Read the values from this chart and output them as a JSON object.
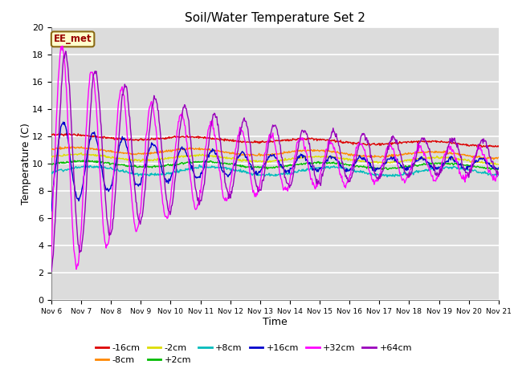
{
  "title": "Soil/Water Temperature Set 2",
  "xlabel": "Time",
  "ylabel": "Temperature (C)",
  "ylim": [
    0,
    20
  ],
  "xlim": [
    0,
    15
  ],
  "fig_bg": "#ffffff",
  "plot_bg": "#dcdcdc",
  "annotation_text": "EE_met",
  "annotation_bg": "#ffffcc",
  "annotation_border": "#8b6914",
  "xtick_labels": [
    "Nov 6",
    "Nov 7",
    "Nov 8",
    "Nov 9",
    "Nov 10",
    "Nov 11",
    "Nov 12",
    "Nov 13",
    "Nov 14",
    "Nov 15",
    "Nov 16",
    "Nov 17",
    "Nov 18",
    "Nov 19",
    "Nov 20",
    "Nov 21"
  ],
  "series": [
    {
      "label": "-16cm",
      "color": "#dd0000"
    },
    {
      "label": "-8cm",
      "color": "#ff8800"
    },
    {
      "label": "-2cm",
      "color": "#dddd00"
    },
    {
      "label": "+2cm",
      "color": "#00bb00"
    },
    {
      "label": "+8cm",
      "color": "#00bbbb"
    },
    {
      "label": "+16cm",
      "color": "#0000cc"
    },
    {
      "label": "+32cm",
      "color": "#ff00ff"
    },
    {
      "label": "+64cm",
      "color": "#9900bb"
    }
  ]
}
